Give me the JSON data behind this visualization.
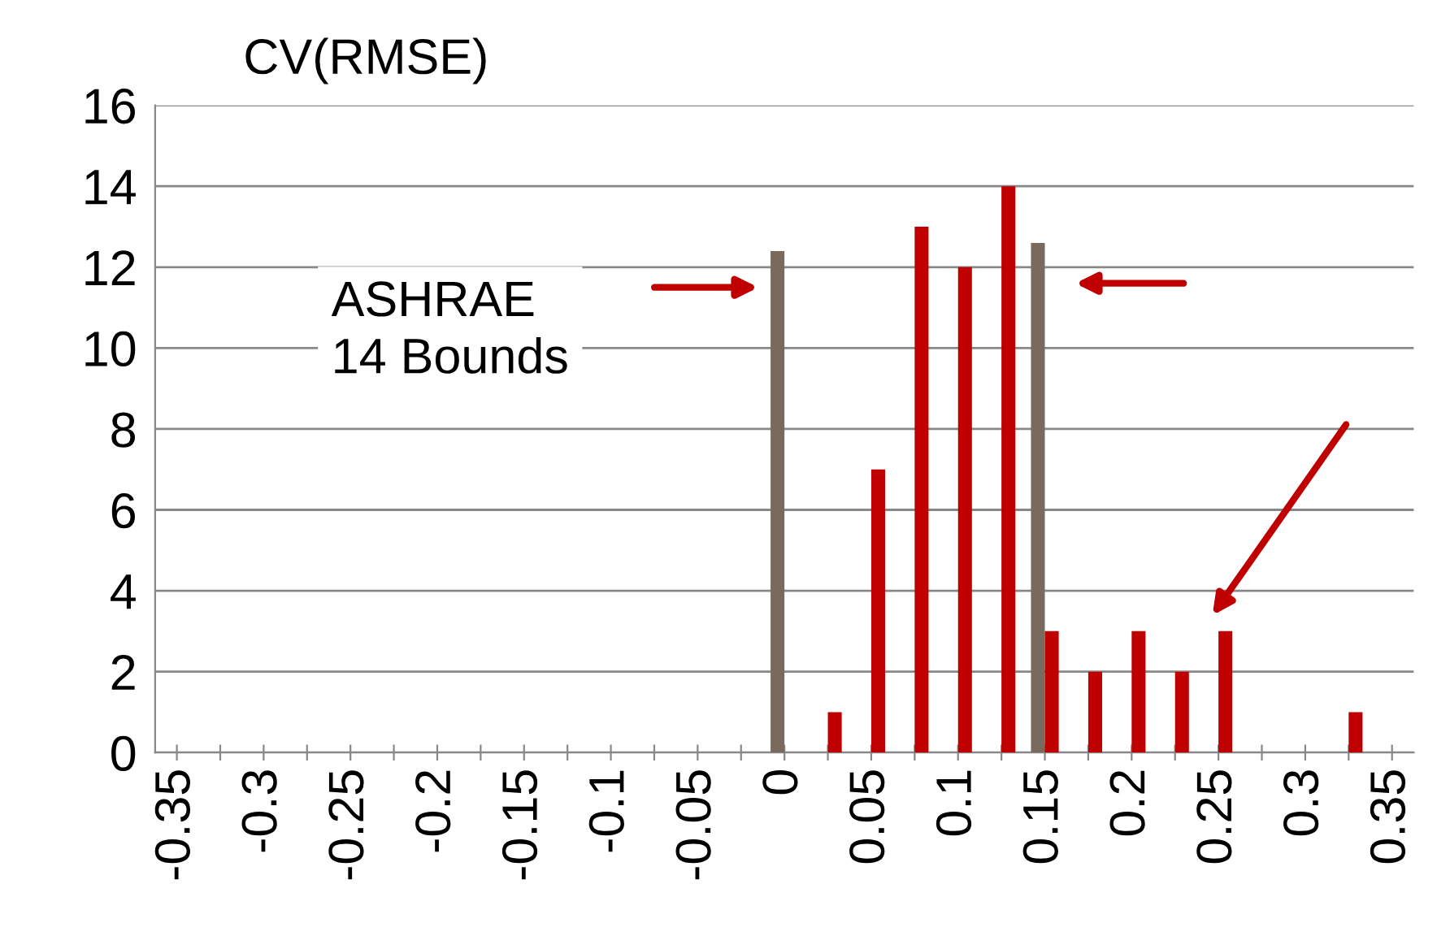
{
  "chart_data": {
    "type": "bar",
    "title": "CV(RMSE)",
    "categories": [
      "-0.35",
      null,
      "-0.3",
      null,
      "-0.25",
      null,
      "-0.2",
      null,
      "-0.15",
      null,
      "-0.1",
      null,
      "-0.05",
      null,
      "0",
      null,
      "0.05",
      null,
      "0.1",
      null,
      "0.15",
      null,
      "0.2",
      null,
      "0.25",
      null,
      "0.3",
      null,
      "0.35"
    ],
    "series": [
      {
        "color": "#7a6a5e",
        "values": [
          0,
          0,
          0,
          0,
          0,
          0,
          0,
          0,
          0,
          0,
          0,
          0,
          0,
          0,
          12.4,
          0,
          0,
          0,
          0,
          0,
          12.6,
          0,
          0,
          0,
          0,
          0,
          0,
          0,
          0
        ]
      },
      {
        "color": "#c00000",
        "values": [
          0,
          0,
          0,
          0,
          0,
          0,
          0,
          0,
          0,
          0,
          0,
          0,
          0,
          0,
          0,
          1,
          7,
          13,
          12,
          14,
          3,
          2,
          3,
          2,
          3,
          0,
          0,
          1,
          0
        ]
      }
    ],
    "annotations": [
      "ASHRAE\n14 Bounds"
    ],
    "ylim": [
      0,
      16
    ],
    "yticks": [
      0,
      2,
      4,
      6,
      8,
      10,
      12,
      14,
      16
    ],
    "grid": "y",
    "legend": false
  }
}
